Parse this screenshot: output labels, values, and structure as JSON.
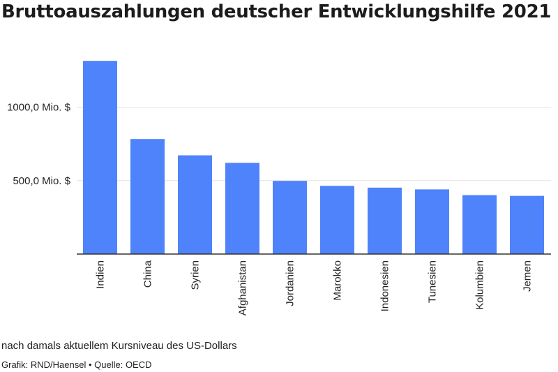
{
  "title": "Bruttoauszahlungen deutscher Entwicklungshilfe 2021",
  "note": "nach damals aktuellem Kursniveau des US-Dollars",
  "credit": "Grafik: RND/Haensel • Quelle: OECD",
  "colors": {
    "bar": "#4f83fb",
    "grid": "#e2e2e2",
    "axis": "#333333"
  },
  "chart_data": {
    "type": "bar",
    "title": "Bruttoauszahlungen deutscher Entwicklungshilfe 2021",
    "categories": [
      "Indien",
      "China",
      "Syrien",
      "Afghanistan",
      "Jordanien",
      "Marokko",
      "Indonesien",
      "Tunesien",
      "Kolumbien",
      "Jemen"
    ],
    "values": [
      1315,
      783,
      672,
      621,
      498,
      464,
      452,
      440,
      401,
      396
    ],
    "ylim": [
      0,
      1400
    ],
    "yticks": [
      500,
      1000
    ],
    "ytick_labels": [
      "500,0 Mio. $",
      "1000,0 Mio. $"
    ],
    "grid": true,
    "legend": "none"
  }
}
